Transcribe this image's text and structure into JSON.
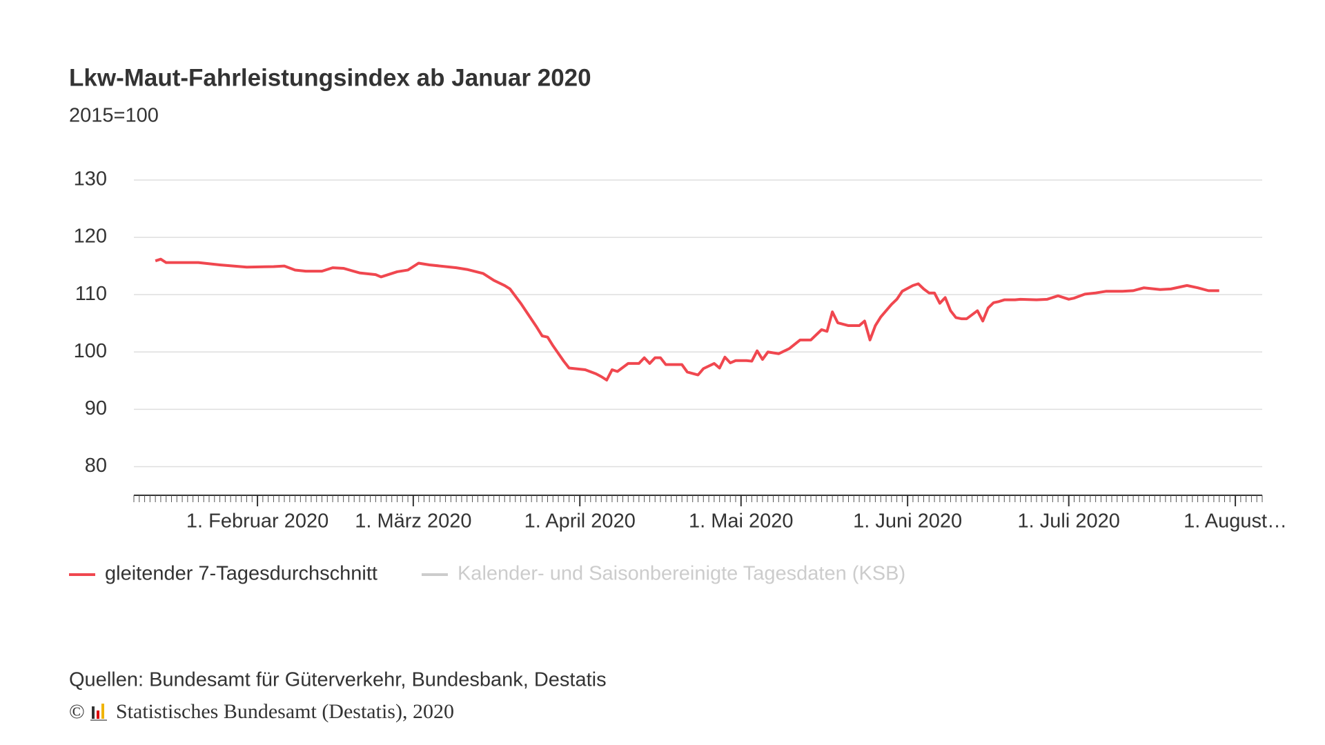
{
  "chart_data": {
    "type": "line",
    "title": "Lkw-Maut-Fahrleistungsindex ab Januar 2020",
    "subtitle": "2015=100",
    "xlim": [
      "2020-01-09",
      "2020-08-06"
    ],
    "xticks": [
      {
        "value": "2020-02-01",
        "label": "1. Februar 2020"
      },
      {
        "value": "2020-03-01",
        "label": "1. März 2020"
      },
      {
        "value": "2020-04-01",
        "label": "1. April 2020"
      },
      {
        "value": "2020-05-01",
        "label": "1. Mai 2020"
      },
      {
        "value": "2020-06-01",
        "label": "1. Juni 2020"
      },
      {
        "value": "2020-07-01",
        "label": "1. Juli 2020"
      },
      {
        "value": "2020-08-01",
        "label": "1. August…"
      }
    ],
    "ylim": [
      75,
      130
    ],
    "yticks": [
      80,
      90,
      100,
      110,
      120,
      130
    ],
    "grid": true,
    "x": [
      "2020-01-13",
      "2020-01-14",
      "2020-01-15",
      "2020-01-21",
      "2020-01-25",
      "2020-01-30",
      "2020-02-04",
      "2020-02-06",
      "2020-02-08",
      "2020-02-10",
      "2020-02-13",
      "2020-02-15",
      "2020-02-17",
      "2020-02-20",
      "2020-02-23",
      "2020-02-24",
      "2020-02-27",
      "2020-02-29",
      "2020-03-02",
      "2020-03-04",
      "2020-03-09",
      "2020-03-11",
      "2020-03-14",
      "2020-03-16",
      "2020-03-18",
      "2020-03-19",
      "2020-03-21",
      "2020-03-24",
      "2020-03-25",
      "2020-03-26",
      "2020-03-27",
      "2020-03-29",
      "2020-03-30",
      "2020-04-02",
      "2020-04-04",
      "2020-04-05",
      "2020-04-06",
      "2020-04-07",
      "2020-04-08",
      "2020-04-10",
      "2020-04-12",
      "2020-04-13",
      "2020-04-14",
      "2020-04-15",
      "2020-04-16",
      "2020-04-17",
      "2020-04-20",
      "2020-04-21",
      "2020-04-23",
      "2020-04-24",
      "2020-04-26",
      "2020-04-27",
      "2020-04-28",
      "2020-04-29",
      "2020-04-30",
      "2020-05-02",
      "2020-05-03",
      "2020-05-04",
      "2020-05-05",
      "2020-05-06",
      "2020-05-08",
      "2020-05-10",
      "2020-05-12",
      "2020-05-14",
      "2020-05-16",
      "2020-05-17",
      "2020-05-18",
      "2020-05-19",
      "2020-05-21",
      "2020-05-23",
      "2020-05-24",
      "2020-05-25",
      "2020-05-26",
      "2020-05-27",
      "2020-05-29",
      "2020-05-30",
      "2020-05-31",
      "2020-06-02",
      "2020-06-03",
      "2020-06-04",
      "2020-06-05",
      "2020-06-06",
      "2020-06-07",
      "2020-06-08",
      "2020-06-09",
      "2020-06-10",
      "2020-06-11",
      "2020-06-12",
      "2020-06-14",
      "2020-06-15",
      "2020-06-16",
      "2020-06-17",
      "2020-06-18",
      "2020-06-19",
      "2020-06-21",
      "2020-06-22",
      "2020-06-25",
      "2020-06-27",
      "2020-06-29",
      "2020-07-01",
      "2020-07-02",
      "2020-07-04",
      "2020-07-06",
      "2020-07-08",
      "2020-07-11",
      "2020-07-13",
      "2020-07-15",
      "2020-07-18",
      "2020-07-20",
      "2020-07-23",
      "2020-07-25",
      "2020-07-27",
      "2020-07-29"
    ],
    "series": [
      {
        "name": "gleitender 7-Tagesdurchschnitt",
        "color": "#f0474f",
        "values": [
          115.9,
          116.2,
          115.6,
          115.6,
          115.2,
          114.8,
          114.9,
          115.0,
          114.3,
          114.1,
          114.1,
          114.7,
          114.6,
          113.8,
          113.5,
          113.1,
          114.0,
          114.3,
          115.5,
          115.2,
          114.7,
          114.4,
          113.7,
          112.5,
          111.6,
          111.0,
          108.5,
          104.3,
          102.8,
          102.6,
          101.1,
          98.4,
          97.2,
          96.9,
          96.2,
          95.7,
          95.1,
          96.9,
          96.6,
          98.0,
          98.0,
          99.0,
          98.0,
          99.0,
          99.0,
          97.8,
          97.8,
          96.5,
          96.0,
          97.1,
          98.0,
          97.2,
          99.1,
          98.1,
          98.5,
          98.5,
          98.4,
          100.2,
          98.7,
          100.0,
          99.7,
          100.6,
          102.1,
          102.1,
          103.9,
          103.6,
          107.0,
          105.1,
          104.6,
          104.6,
          105.4,
          102.1,
          104.6,
          106.1,
          108.3,
          109.2,
          110.6,
          111.6,
          111.9,
          111.0,
          110.3,
          110.3,
          108.5,
          109.5,
          107.2,
          106.0,
          105.8,
          105.8,
          107.2,
          105.4,
          107.7,
          108.6,
          108.8,
          109.1,
          109.1,
          109.2,
          109.1,
          109.2,
          109.8,
          109.2,
          109.4,
          110.1,
          110.3,
          110.6,
          110.6,
          110.7,
          111.2,
          110.9,
          111.0,
          111.6,
          111.2,
          110.7,
          110.7
        ]
      }
    ],
    "hidden_series": [
      {
        "name": "Kalender- und Saisonbereinigte Tagesdaten (KSB)",
        "color": "#cccccc"
      }
    ],
    "source": "Quellen: Bundesamt für Güterverkehr, Bundesbank, Destatis",
    "copyright_symbol": "©",
    "copyright": "Statistisches Bundesamt (Destatis), 2020"
  }
}
